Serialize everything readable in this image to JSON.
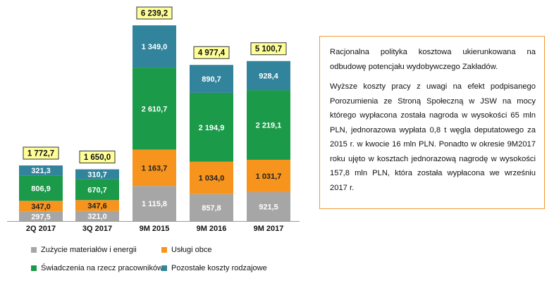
{
  "chart_data": {
    "type": "bar",
    "stacked": true,
    "categories": [
      "2Q 2017",
      "3Q 2017",
      "9M 2015",
      "9M 2016",
      "9M 2017"
    ],
    "series": [
      {
        "name": "Zużycie materiałów i energii",
        "color": "#a6a6a6",
        "values": [
          297.5,
          321.0,
          1115.8,
          857.8,
          921.5
        ],
        "labels": [
          "297,5",
          "321,0",
          "1 115,8",
          "857,8",
          "921,5"
        ]
      },
      {
        "name": "Usługi obce",
        "color": "#f7941d",
        "values": [
          347.0,
          347.6,
          1163.7,
          1034.0,
          1031.7
        ],
        "labels": [
          "347,0",
          "347,6",
          "1 163,7",
          "1 034,0",
          "1 031,7"
        ]
      },
      {
        "name": "Świadczenia na rzecz pracowników",
        "color": "#1b9a4a",
        "values": [
          806.9,
          670.7,
          2610.7,
          2194.9,
          2219.1
        ],
        "labels": [
          "806,9",
          "670,7",
          "2 610,7",
          "2 194,9",
          "2 219,1"
        ]
      },
      {
        "name": "Pozostałe koszty rodzajowe",
        "color": "#31849b",
        "values": [
          321.3,
          310.7,
          1349.0,
          890.7,
          928.4
        ],
        "labels": [
          "321,3",
          "310,7",
          "1 349,0",
          "890,7",
          "928,4"
        ]
      }
    ],
    "totals": [
      "1 772,7",
      "1 650,0",
      "6 239,2",
      "4 977,4",
      "5 100,7"
    ],
    "legend_position": "bottom",
    "grid": false
  },
  "note": {
    "paragraphs": [
      "Racjonalna polityka kosztowa ukierunkowana na odbudowę potencjału wydobywczego Zakładów.",
      "Wyższe koszty pracy z uwagi na efekt podpisanego Porozumienia ze Stroną Społeczną w JSW na mocy którego wypłacona została nagroda w wysokości 65 mln PLN, jednorazowa wypłata 0,8 t węgla deputatowego za 2015 r. w kwocie 16 mln PLN. Ponadto w okresie 9M2017 roku ujęto w kosztach jednorazową nagrodę w wysokości 157,8 mln PLN, która została wypłacona we wrześniu 2017 r."
    ],
    "border_color": "#f29b30"
  }
}
